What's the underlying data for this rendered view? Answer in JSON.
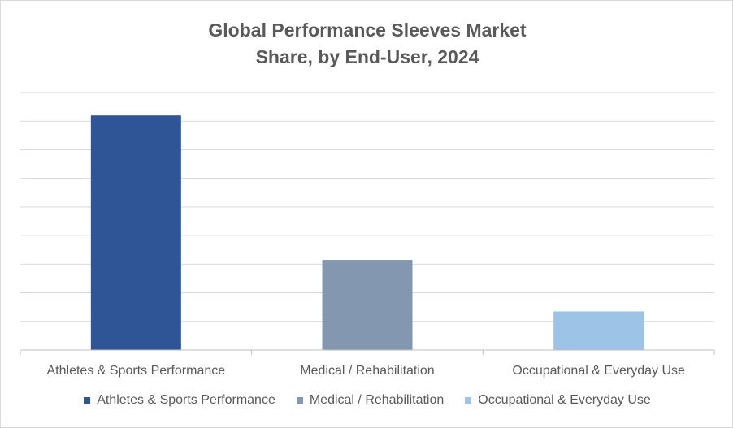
{
  "chart_data": {
    "type": "bar",
    "title_lines": [
      "Global Performance Sleeves Market",
      "Share, by End-User, 2024"
    ],
    "categories": [
      "Athletes & Sports Performance",
      "Medical / Rehabilitation",
      "Occupational & Everyday Use"
    ],
    "values": [
      8.2,
      3.15,
      1.35
    ],
    "ylim": [
      0,
      9
    ],
    "y_tick_labels_shown": false,
    "grid": true,
    "legend": "bottom",
    "colors": [
      "#2f5597",
      "#8497b0",
      "#9dc3e6"
    ]
  }
}
